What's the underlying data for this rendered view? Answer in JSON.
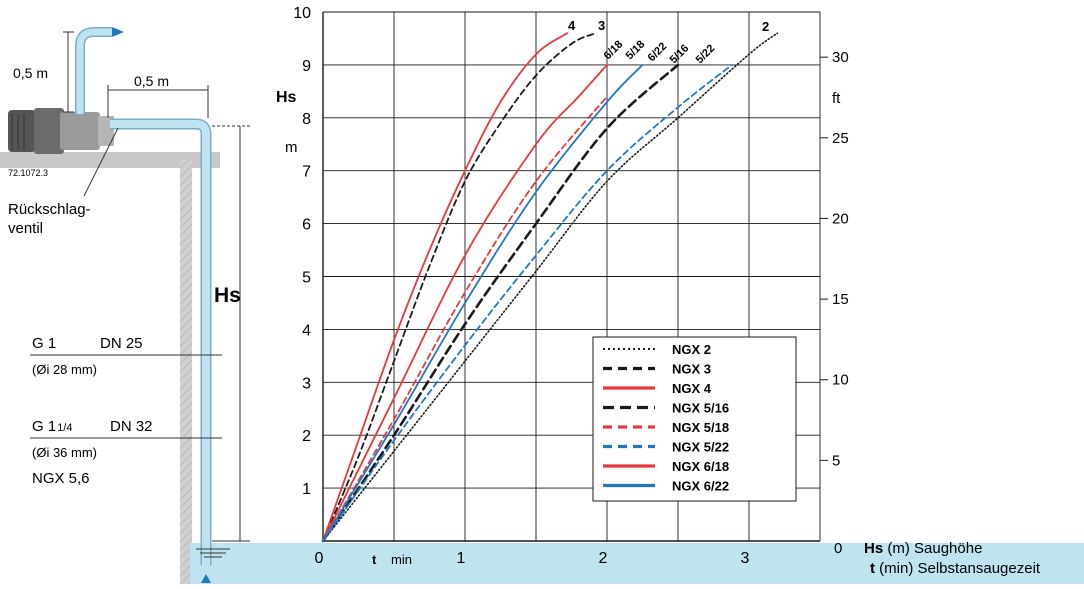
{
  "colors": {
    "red": "#e8383d",
    "black": "#1a1a1a",
    "blue": "#1f78c1",
    "water": "#bfe3ef",
    "pipe": "#bde4f0",
    "ground": "#c8c8c8"
  },
  "diagram": {
    "label_05_vertical": "0,5 m",
    "label_05_horizontal": "0,5 m",
    "code": "72.1072.3",
    "valve_line1": "Rückschlag-",
    "valve_line2": "ventil",
    "hs_label": "Hs",
    "pipe1_thread": "G 1",
    "pipe1_dn": "DN 25",
    "pipe1_id": "(Øi 28 mm)",
    "pipe2_thread_main": "G 1",
    "pipe2_thread_frac": "1/4",
    "pipe2_dn": "DN 32",
    "pipe2_id": "(Øi 36 mm)",
    "pipe2_models": "NGX 5,6"
  },
  "axes": {
    "y_label_hs": "Hs",
    "y_label_m": "m",
    "y_label_ft": "ft",
    "x_label_t": "t",
    "x_label_min": "min",
    "x_ticks": [
      "0",
      "1",
      "2",
      "3"
    ],
    "y_ticks": [
      "1",
      "2",
      "3",
      "4",
      "5",
      "6",
      "7",
      "8",
      "9",
      "10"
    ],
    "ft_ticks": [
      "5",
      "10",
      "15",
      "20",
      "25",
      "30"
    ],
    "corner_zero": "0",
    "note_hs_bold": "Hs",
    "note_hs_rest": " (m)  Saughöhe",
    "note_t_bold": "t",
    "note_t_rest": " (min)  Selbstansaugezeit"
  },
  "curve_labels": {
    "ngx4": "4",
    "ngx3": "3",
    "ngx2": "2",
    "ngx618": "6/18",
    "ngx518": "5/18",
    "ngx622": "6/22",
    "ngx516": "5/16",
    "ngx522": "5/22"
  },
  "chart_data": {
    "type": "line",
    "xlabel": "t  min",
    "ylabel": "Hs m",
    "xlim": [
      0,
      3.5
    ],
    "ylim": [
      0,
      10
    ],
    "secondary_ylabel": "ft",
    "secondary_ylim": [
      0,
      32.8
    ],
    "grid": true,
    "legend_position": "bottom-right",
    "series": [
      {
        "name": "NGX 2",
        "style": "dotted",
        "color": "#1a1a1a",
        "x": [
          0,
          0.5,
          1.0,
          1.5,
          2.0,
          2.5,
          3.0,
          3.2
        ],
        "y": [
          0,
          1.7,
          3.4,
          5.1,
          6.8,
          8.0,
          9.2,
          9.6
        ]
      },
      {
        "name": "NGX 3",
        "style": "dashed",
        "color": "#1a1a1a",
        "x": [
          0,
          0.25,
          0.5,
          0.75,
          1.0,
          1.25,
          1.5,
          1.75,
          1.92
        ],
        "y": [
          0,
          1.6,
          3.4,
          5.2,
          6.8,
          7.9,
          8.8,
          9.4,
          9.6
        ]
      },
      {
        "name": "NGX 4",
        "style": "solid",
        "color": "#e8383d",
        "x": [
          0,
          0.25,
          0.5,
          0.75,
          1.0,
          1.25,
          1.5,
          1.72
        ],
        "y": [
          0,
          1.9,
          3.8,
          5.5,
          7.0,
          8.3,
          9.2,
          9.6
        ]
      },
      {
        "name": "NGX 5/16",
        "style": "dashed-bold",
        "color": "#1a1a1a",
        "x": [
          0,
          0.5,
          1.0,
          1.5,
          2.0,
          2.5
        ],
        "y": [
          0,
          2.0,
          4.1,
          6.0,
          7.8,
          9.0
        ]
      },
      {
        "name": "NGX 5/18",
        "style": "dashed",
        "color": "#e8383d",
        "x": [
          0,
          0.5,
          1.0,
          1.5,
          2.0
        ],
        "y": [
          0,
          2.3,
          4.7,
          6.8,
          8.4
        ]
      },
      {
        "name": "NGX 5/22",
        "style": "dashed",
        "color": "#1f78c1",
        "x": [
          0,
          0.5,
          1.0,
          1.5,
          2.0,
          2.5,
          2.88
        ],
        "y": [
          0,
          1.9,
          3.7,
          5.4,
          7.0,
          8.2,
          9.0
        ]
      },
      {
        "name": "NGX 6/18",
        "style": "solid",
        "color": "#e8383d",
        "x": [
          0,
          0.5,
          1.0,
          1.5,
          1.8,
          2.0
        ],
        "y": [
          0,
          2.7,
          5.4,
          7.5,
          8.4,
          9.0
        ]
      },
      {
        "name": "NGX 6/22",
        "style": "solid",
        "color": "#1f78c1",
        "x": [
          0,
          0.5,
          1.0,
          1.5,
          2.0,
          2.25
        ],
        "y": [
          0,
          2.2,
          4.5,
          6.6,
          8.3,
          9.0
        ]
      }
    ]
  }
}
